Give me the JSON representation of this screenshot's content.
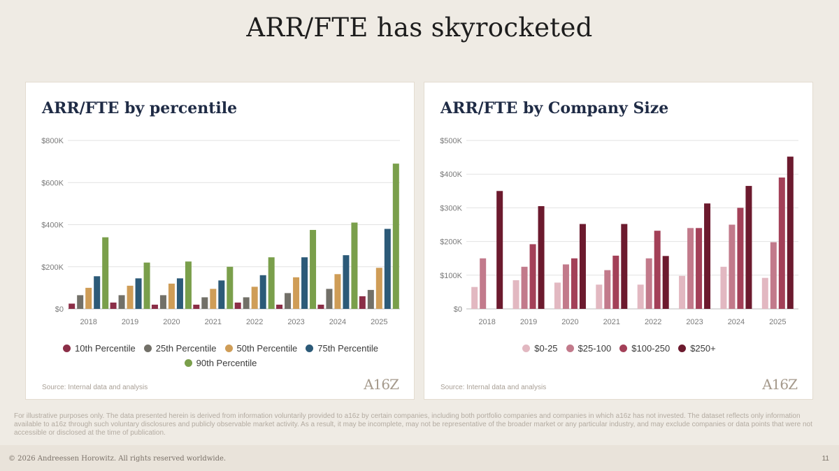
{
  "slide": {
    "title": "ARR/FTE has skyrocketed",
    "disclaimer": "For illustrative purposes only. The data presented herein is derived from information voluntarily provided to a16z by certain companies, including both portfolio companies and companies in which a16z has not invested. The dataset reflects only information available to a16z through such voluntary disclosures and publicly observable market activity. As a result, it may be incomplete, may not be representative of the broader market or any particular industry, and may exclude companies or data points that were not accessible or disclosed at the time of publication.",
    "copyright": "© 2026 Andreessen Horowitz. All rights reserved worldwide.",
    "page_number": "11",
    "logo_text": "A16Z"
  },
  "chart_data": [
    {
      "type": "bar",
      "title": "ARR/FTE by percentile",
      "source": "Source: Internal data and analysis",
      "categories": [
        "2018",
        "2019",
        "2020",
        "2021",
        "2022",
        "2023",
        "2024",
        "2025"
      ],
      "ylim": [
        0,
        800
      ],
      "yticks": [
        0,
        200,
        400,
        600,
        800
      ],
      "ytick_labels": [
        "$0",
        "$200K",
        "$400K",
        "$600K",
        "$800K"
      ],
      "grid": true,
      "legend_position": "bottom",
      "series": [
        {
          "name": "10th Percentile",
          "color": "#8b2e47",
          "values": [
            25,
            30,
            20,
            20,
            30,
            20,
            20,
            60
          ]
        },
        {
          "name": "25th Percentile",
          "color": "#727068",
          "values": [
            65,
            65,
            65,
            55,
            55,
            75,
            95,
            90
          ]
        },
        {
          "name": "50th Percentile",
          "color": "#cf9d57",
          "values": [
            100,
            110,
            120,
            95,
            105,
            150,
            165,
            195
          ]
        },
        {
          "name": "75th Percentile",
          "color": "#2c5a78",
          "values": [
            155,
            145,
            145,
            135,
            160,
            245,
            255,
            380
          ]
        },
        {
          "name": "90th Percentile",
          "color": "#7a9f4b",
          "values": [
            340,
            220,
            225,
            200,
            245,
            375,
            410,
            690
          ]
        }
      ]
    },
    {
      "type": "bar",
      "title": "ARR/FTE by Company Size",
      "source": "Source: Internal data and analysis",
      "categories": [
        "2018",
        "2019",
        "2020",
        "2021",
        "2022",
        "2023",
        "2024",
        "2025"
      ],
      "ylim": [
        0,
        500
      ],
      "yticks": [
        0,
        100,
        200,
        300,
        400,
        500
      ],
      "ytick_labels": [
        "$0",
        "$100K",
        "$200K",
        "$300K",
        "$400K",
        "$500K"
      ],
      "grid": true,
      "legend_position": "bottom",
      "series": [
        {
          "name": "$0-25",
          "color": "#e2b8c1",
          "values": [
            65,
            85,
            78,
            72,
            72,
            98,
            125,
            92
          ]
        },
        {
          "name": "$25-100",
          "color": "#c27a8b",
          "values": [
            150,
            125,
            132,
            115,
            150,
            240,
            250,
            198
          ]
        },
        {
          "name": "$100-250",
          "color": "#a34058",
          "values": [
            0,
            192,
            150,
            158,
            232,
            240,
            300,
            390
          ]
        },
        {
          "name": "$250+",
          "color": "#6c1a2e",
          "values": [
            350,
            305,
            252,
            252,
            157,
            313,
            365,
            452
          ]
        }
      ]
    }
  ]
}
